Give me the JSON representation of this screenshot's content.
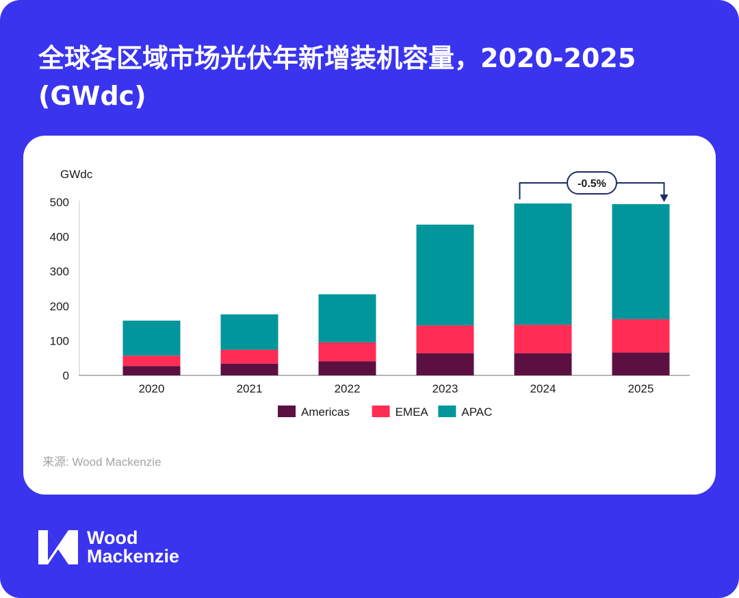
{
  "header": {
    "title": "全球各区域市场光伏年新增装机容量，2020-2025 (GWdc)"
  },
  "chart_data": {
    "type": "bar",
    "stacked": true,
    "title": "全球各区域市场光伏年新增装机容量，2020-2025 (GWdc)",
    "ylabel": "GWdc",
    "xlabel": "",
    "ylim": [
      0,
      500
    ],
    "yticks": [
      0,
      100,
      200,
      300,
      400,
      500
    ],
    "categories": [
      "2020",
      "2021",
      "2022",
      "2023",
      "2024",
      "2025"
    ],
    "series": [
      {
        "name": "Americas",
        "values": [
          27,
          34,
          41,
          64,
          64,
          66
        ]
      },
      {
        "name": "EMEA",
        "values": [
          30,
          40,
          54,
          80,
          82,
          96
        ]
      },
      {
        "name": "APAC",
        "values": [
          101,
          102,
          139,
          291,
          350,
          332
        ]
      }
    ],
    "annotation": {
      "from": "2024",
      "to": "2025",
      "label": "-0.5%"
    },
    "colors": {
      "Americas": "#5c1042",
      "EMEA": "#ff2d55",
      "APAC": "#00969b"
    },
    "legend_position": "bottom"
  },
  "source": "来源: Wood Mackenzie",
  "brand": {
    "line1": "Wood",
    "line2": "Mackenzie"
  },
  "colors": {
    "background": "#3a34ef",
    "card": "#ffffff",
    "source_text": "#a3a3a3"
  }
}
